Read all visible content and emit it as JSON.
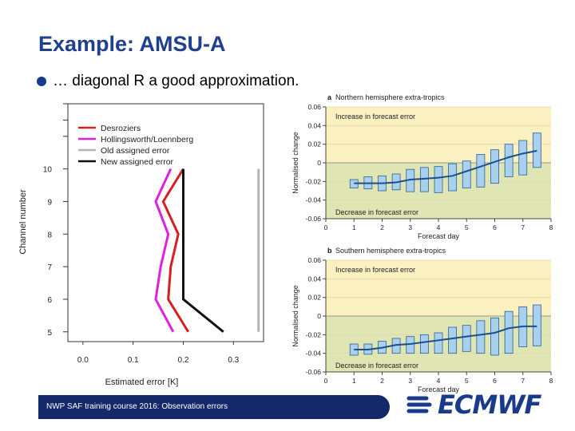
{
  "slide": {
    "title": "Example: AMSU-A",
    "bullet": "… diagonal R a good approximation.",
    "footer": "NWP SAF training course 2016: Observation errors",
    "logo_text": "ECMWF"
  },
  "chart_data": [
    {
      "type": "line",
      "title": "",
      "xlabel": "Estimated error [K]",
      "ylabel": "Channel number",
      "xlim": [
        -0.03,
        0.36
      ],
      "ylim": [
        4.7,
        12.0
      ],
      "xticks": [
        "0.0",
        "0.1",
        "0.2",
        "0.3"
      ],
      "yticks": [
        "5",
        "6",
        "7",
        "8",
        "9",
        "10"
      ],
      "series": [
        {
          "name": "Desroziers",
          "color": "#d81e1e",
          "y": [
            5,
            6,
            7,
            8,
            9,
            10
          ],
          "x": [
            0.21,
            0.17,
            0.175,
            0.19,
            0.16,
            0.2
          ]
        },
        {
          "name": "Hollingsworth/Loennberg",
          "color": "#e020e0",
          "y": [
            5,
            6,
            7,
            8,
            9,
            10
          ],
          "x": [
            0.18,
            0.145,
            0.155,
            0.17,
            0.145,
            0.175
          ]
        },
        {
          "name": "Old assigned error",
          "color": "#b5b5b5",
          "y": [
            5,
            10
          ],
          "x": [
            0.35,
            0.35
          ]
        },
        {
          "name": "New assigned error",
          "color": "#111111",
          "y": [
            5,
            6,
            7,
            8,
            9,
            10
          ],
          "x": [
            0.28,
            0.2,
            0.2,
            0.2,
            0.2,
            0.2
          ]
        }
      ]
    },
    {
      "type": "bar",
      "label": "a",
      "title": "Northern hemisphere extra-tropics",
      "xlabel": "Forecast day",
      "ylabel": "Normalised change",
      "xlim": [
        0,
        8
      ],
      "ylim": [
        -0.06,
        0.06
      ],
      "xticks": [
        "0",
        "1",
        "2",
        "3",
        "4",
        "5",
        "6",
        "7",
        "8"
      ],
      "yticks": [
        "0.06",
        "0.04",
        "0.02",
        "0",
        "-0.02",
        "-0.04",
        "-0.06"
      ],
      "increase_label": "Increase in forecast error",
      "decrease_label": "Decrease in forecast error",
      "x": [
        1,
        1.5,
        2,
        2.5,
        3,
        3.5,
        4,
        4.5,
        5,
        5.5,
        6,
        6.5,
        7,
        7.5
      ],
      "low": [
        -0.027,
        -0.028,
        -0.03,
        -0.029,
        -0.031,
        -0.031,
        -0.032,
        -0.03,
        -0.027,
        -0.026,
        -0.022,
        -0.015,
        -0.013,
        -0.005
      ],
      "high": [
        -0.018,
        -0.015,
        -0.014,
        -0.012,
        -0.007,
        -0.005,
        -0.004,
        -0.001,
        0.002,
        0.009,
        0.014,
        0.02,
        0.024,
        0.032
      ],
      "mean": [
        -0.022,
        -0.022,
        -0.022,
        -0.021,
        -0.018,
        -0.017,
        -0.016,
        -0.014,
        -0.009,
        -0.004,
        0.001,
        0.006,
        0.01,
        0.013
      ]
    },
    {
      "type": "bar",
      "label": "b",
      "title": "Southern hemisphere extra-tropics",
      "xlabel": "Forecast day",
      "ylabel": "Normalised change",
      "xlim": [
        0,
        8
      ],
      "ylim": [
        -0.06,
        0.06
      ],
      "xticks": [
        "0",
        "1",
        "2",
        "3",
        "4",
        "5",
        "6",
        "7",
        "8"
      ],
      "yticks": [
        "0.06",
        "0.04",
        "0.02",
        "0",
        "-0.02",
        "-0.04",
        "-0.06"
      ],
      "increase_label": "Increase in forecast error",
      "decrease_label": "Decrease in forecast error",
      "x": [
        1,
        1.5,
        2,
        2.5,
        3,
        3.5,
        4,
        4.5,
        5,
        5.5,
        6,
        6.5,
        7,
        7.5
      ],
      "low": [
        -0.042,
        -0.041,
        -0.04,
        -0.04,
        -0.04,
        -0.04,
        -0.04,
        -0.04,
        -0.038,
        -0.04,
        -0.042,
        -0.04,
        -0.033,
        -0.032
      ],
      "high": [
        -0.03,
        -0.03,
        -0.027,
        -0.024,
        -0.022,
        -0.02,
        -0.018,
        -0.012,
        -0.01,
        -0.005,
        -0.002,
        0.005,
        0.01,
        0.012
      ],
      "mean": [
        -0.036,
        -0.036,
        -0.034,
        -0.031,
        -0.03,
        -0.028,
        -0.026,
        -0.024,
        -0.022,
        -0.02,
        -0.018,
        -0.013,
        -0.011,
        -0.011
      ]
    }
  ]
}
